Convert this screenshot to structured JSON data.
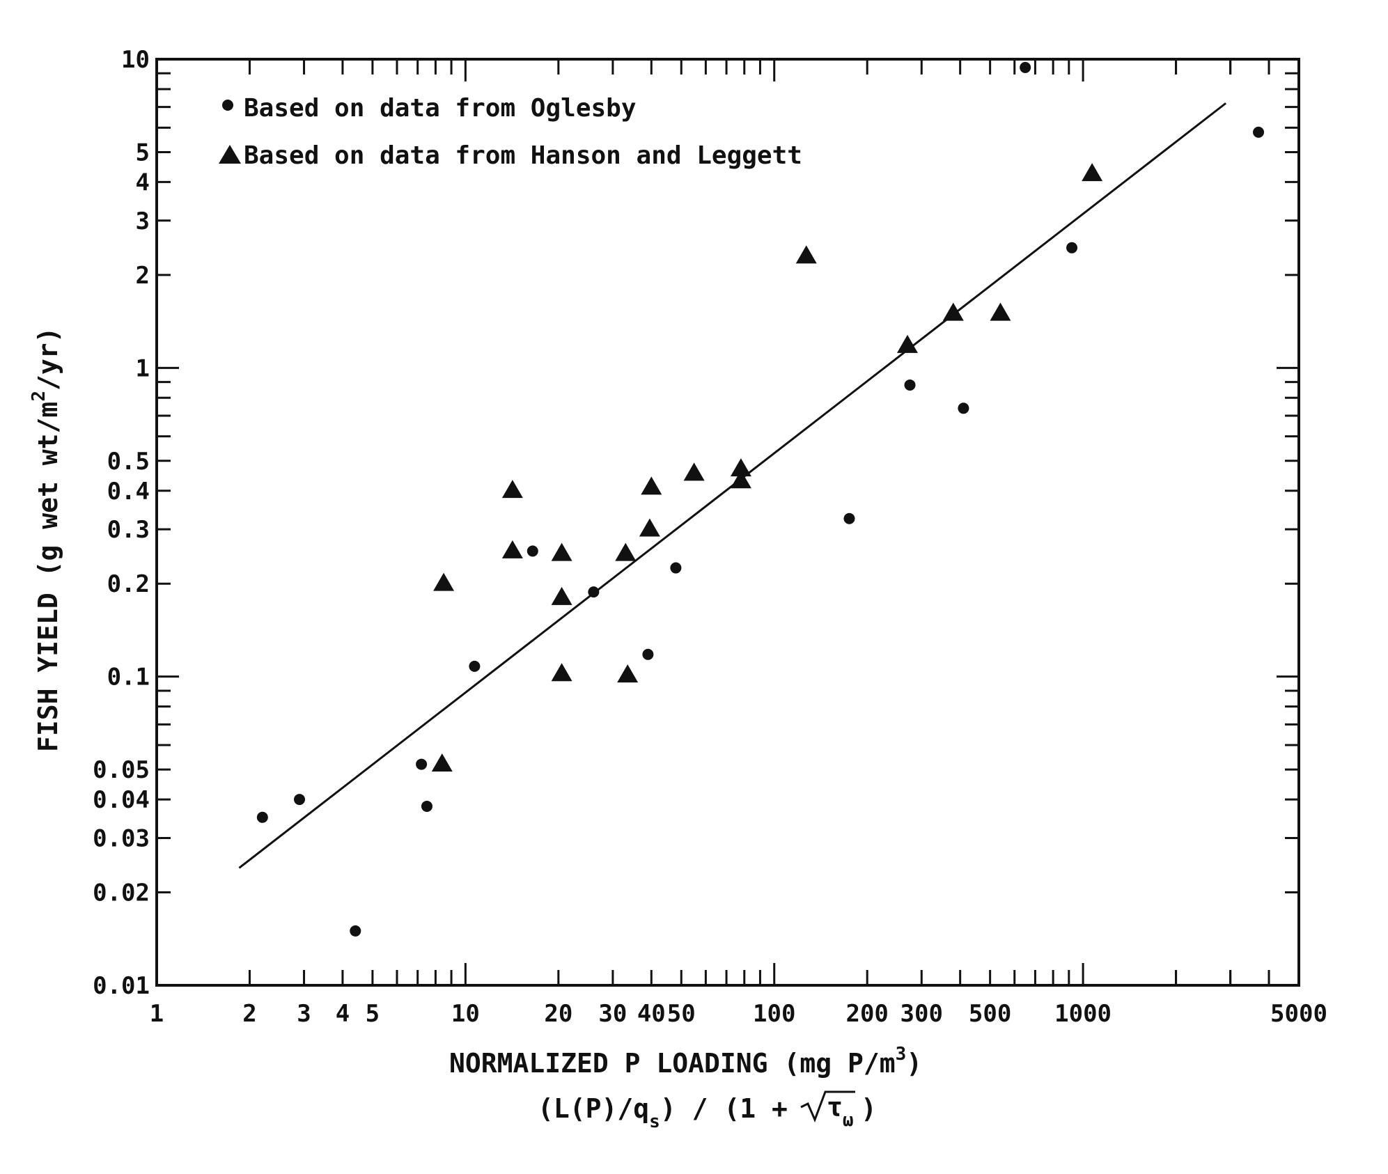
{
  "chart_data": {
    "type": "scatter",
    "x_scale": "log",
    "y_scale": "log",
    "xlim": [
      1,
      5000
    ],
    "ylim": [
      0.01,
      10
    ],
    "x_ticks": [
      1,
      2,
      3,
      4,
      5,
      10,
      20,
      30,
      40,
      50,
      100,
      200,
      300,
      500,
      1000,
      5000
    ],
    "x_tick_labels": [
      "1",
      "2",
      "3",
      "4",
      "5",
      "10",
      "20",
      "30",
      "40",
      "50",
      "100",
      "200",
      "300",
      "500",
      "1000",
      "5000"
    ],
    "y_ticks": [
      0.01,
      0.02,
      0.03,
      0.04,
      0.05,
      0.1,
      0.2,
      0.3,
      0.4,
      0.5,
      1,
      2,
      3,
      4,
      5,
      10
    ],
    "y_tick_labels": [
      "0.01",
      "0.02",
      "0.03",
      "0.04",
      "0.05",
      "0.1",
      "0.2",
      "0.3",
      "0.4",
      "0.5",
      "1",
      "2",
      "3",
      "4",
      "5",
      "10"
    ],
    "xlabel": {
      "line1_text": "NORMALIZED P LOADING  (mg P/m",
      "line1_sup": "3",
      "line1_close": ")",
      "line2_left": "(L(P)/q",
      "line2_sub": "s",
      "line2_mid": ") / (1 + ",
      "line2_tau": "τ",
      "line2_tau_sub": "ω",
      "line2_close": ")"
    },
    "ylabel": {
      "text": "FISH YIELD  (g wet wt/m",
      "sup": "2",
      "close": "/yr)"
    },
    "legend_position": "top-left",
    "series": [
      {
        "name": "Based on data from Oglesby",
        "marker": "circle",
        "points": [
          [
            2.2,
            0.035
          ],
          [
            2.9,
            0.04
          ],
          [
            4.4,
            0.015
          ],
          [
            7.2,
            0.052
          ],
          [
            7.5,
            0.038
          ],
          [
            10.7,
            0.108
          ],
          [
            16.5,
            0.255
          ],
          [
            26,
            0.188
          ],
          [
            39,
            0.118
          ],
          [
            48,
            0.225
          ],
          [
            175,
            0.325
          ],
          [
            275,
            0.88
          ],
          [
            410,
            0.74
          ],
          [
            650,
            9.4
          ],
          [
            920,
            2.45
          ],
          [
            3700,
            5.8
          ]
        ]
      },
      {
        "name": "Based on data from Hanson and Leggett",
        "marker": "triangle",
        "points": [
          [
            8.5,
            0.2
          ],
          [
            8.4,
            0.052
          ],
          [
            14.2,
            0.4
          ],
          [
            14.2,
            0.255
          ],
          [
            20.5,
            0.25
          ],
          [
            20.5,
            0.18
          ],
          [
            20.5,
            0.102
          ],
          [
            33,
            0.25
          ],
          [
            33.5,
            0.101
          ],
          [
            39.5,
            0.3
          ],
          [
            40,
            0.41
          ],
          [
            55,
            0.455
          ],
          [
            78,
            0.47
          ],
          [
            78,
            0.43
          ],
          [
            127,
            2.3
          ],
          [
            270,
            1.18
          ],
          [
            380,
            1.5
          ],
          [
            540,
            1.5
          ],
          [
            1070,
            4.25
          ]
        ]
      }
    ],
    "fit_line": {
      "x": [
        1.85,
        2900
      ],
      "y": [
        0.024,
        7.2
      ]
    }
  }
}
